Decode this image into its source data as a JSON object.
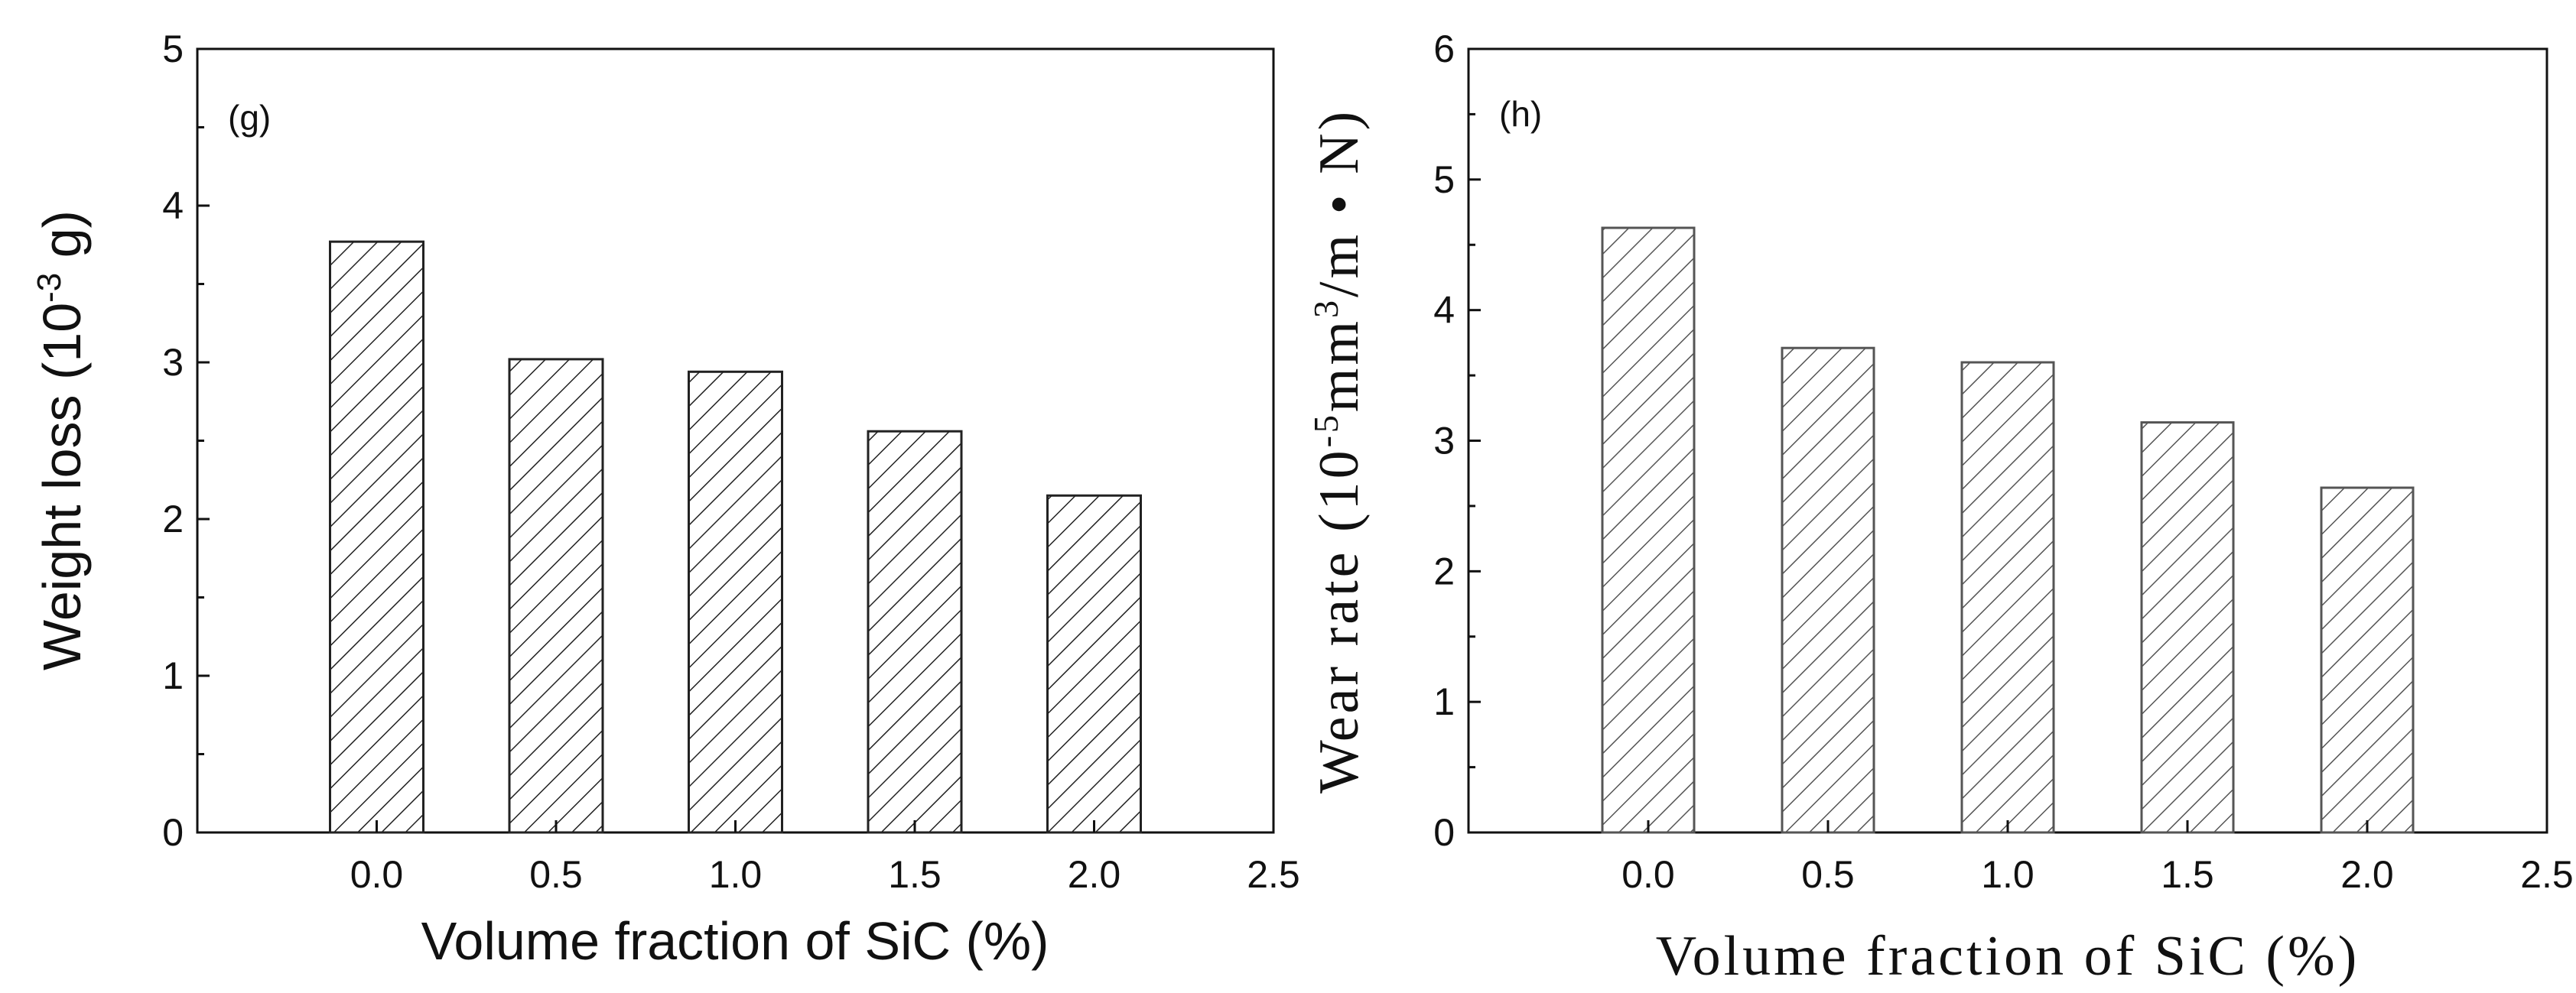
{
  "chart_data": [
    {
      "type": "bar",
      "panel_label": "(g)",
      "categories": [
        "0.0",
        "0.5",
        "1.0",
        "1.5",
        "2.0"
      ],
      "values": [
        3.77,
        3.02,
        2.94,
        2.56,
        2.15
      ],
      "xlabel": "Volume fraction of SiC (%)",
      "ylabel_prefix": "Weight loss (10",
      "ylabel_sup": "-3",
      "ylabel_suffix": " g)",
      "xlim": [
        -0.5,
        2.5
      ],
      "ylim": [
        0,
        5
      ],
      "xticks": [
        "0.0",
        "0.5",
        "1.0",
        "1.5",
        "2.0",
        "2.5"
      ],
      "yticks": [
        "0",
        "1",
        "2",
        "3",
        "4",
        "5"
      ],
      "bar_fill": "hatched",
      "bar_color": "#222222"
    },
    {
      "type": "bar",
      "panel_label": "(h)",
      "categories": [
        "0.0",
        "0.5",
        "1.0",
        "1.5",
        "2.0"
      ],
      "values": [
        4.63,
        3.71,
        3.6,
        3.14,
        2.64
      ],
      "xlabel": "Volume fraction of SiC (%)",
      "ylabel_prefix": "Wear rate (10",
      "ylabel_sup1": "-5",
      "ylabel_mid": "mm",
      "ylabel_sup2": "3",
      "ylabel_suffix": "/m • N)",
      "xlim": [
        -0.5,
        2.5
      ],
      "ylim": [
        0,
        6
      ],
      "xticks": [
        "0.0",
        "0.5",
        "1.0",
        "1.5",
        "2.0",
        "2.5"
      ],
      "yticks": [
        "0",
        "1",
        "2",
        "3",
        "4",
        "5",
        "6"
      ],
      "bar_fill": "hatched",
      "bar_color": "#555555"
    }
  ]
}
